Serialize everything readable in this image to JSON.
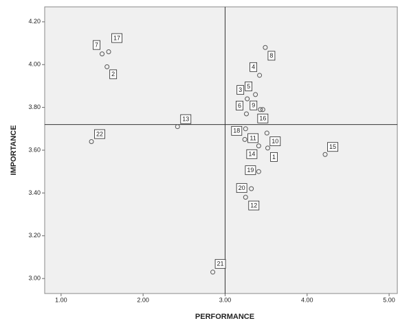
{
  "chart_data": {
    "type": "scatter",
    "x_label": "PERFORMANCE",
    "y_label": "IMPORTANCE",
    "point_labels": [
      "1",
      "2",
      "3",
      "4",
      "5",
      "6",
      "7",
      "8",
      "9",
      "10",
      "11",
      "12",
      "13",
      "14",
      "15",
      "16",
      "17",
      "18",
      "19",
      "20",
      "21",
      "22"
    ],
    "x": [
      3.52,
      1.56,
      3.27,
      3.42,
      3.37,
      3.26,
      1.5,
      3.49,
      3.43,
      3.51,
      3.24,
      3.25,
      2.42,
      3.41,
      4.22,
      3.46,
      1.58,
      3.25,
      3.41,
      3.32,
      2.85,
      1.37
    ],
    "values": [
      3.61,
      3.99,
      3.84,
      3.95,
      3.86,
      3.77,
      4.05,
      4.08,
      3.79,
      3.68,
      3.65,
      3.38,
      3.71,
      3.62,
      3.58,
      3.79,
      4.06,
      3.7,
      3.5,
      3.42,
      3.03,
      3.64
    ],
    "color": "#555555",
    "xlim": [
      0.8,
      5.1
    ],
    "ylim": [
      2.93,
      4.27
    ],
    "xticks": [
      {
        "value": 1,
        "label": "1.00"
      },
      {
        "value": 2,
        "label": "2.00"
      },
      {
        "value": 3,
        "label": "3.00"
      },
      {
        "value": 4,
        "label": "4.00"
      },
      {
        "value": 5,
        "label": "5.00"
      }
    ],
    "yticks": [
      {
        "value": 3,
        "label": "3.00"
      },
      {
        "value": 3.2,
        "label": "3.20"
      },
      {
        "value": 3.4,
        "label": "3.40"
      },
      {
        "value": 3.6,
        "label": "3.60"
      },
      {
        "value": 3.8,
        "label": "3.80"
      },
      {
        "value": 4,
        "label": "4.00"
      },
      {
        "value": 4.2,
        "label": "4.20"
      }
    ],
    "reference_x": 3.0,
    "reference_y": 3.72
  }
}
